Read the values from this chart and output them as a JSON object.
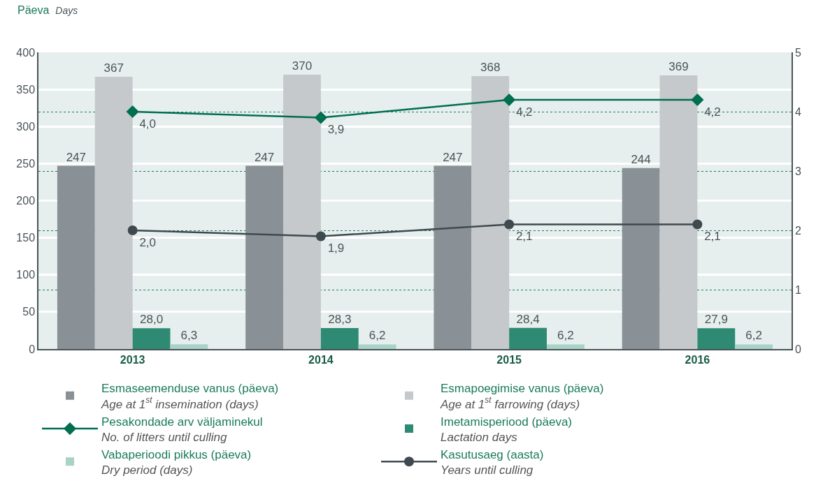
{
  "chart_data": {
    "type": "bar",
    "ylabel": "Päeva\nDays",
    "categories": [
      "2013",
      "2014",
      "2015",
      "2016"
    ],
    "series": [
      {
        "name": "Esmaseemenduse vanus (päeva)\nAge at 1$^{st}$ insemination (days)",
        "color": "#8a9196",
        "values": [
          247,
          247,
          247,
          244
        ]
      },
      {
        "name": "Esmapoegimise vanus (päeva)\nAge at 1$^{st}$ farrowing (days)",
        "color": "#c5c9cb",
        "values": [
          367,
          370,
          368,
          369
        ]
      },
      {
        "name": "Pesakondade arv väljaminekul\nNo. of litters until culling",
        "type": "line",
        "axis": "y2",
        "marker": "diamond",
        "color": "#006e50",
        "values": [
          4.0,
          3.9,
          4.2,
          4.2
        ],
        "value_labels": [
          "4,0",
          "3,9",
          "4,2",
          "4,2"
        ]
      },
      {
        "name": "Imetamisperiood (päeva)\nLactation days",
        "color": "#2e8a72",
        "values": [
          28.0,
          28.3,
          28.4,
          27.9
        ],
        "value_labels": [
          "28,0",
          "28,3",
          "28,4",
          "27,9"
        ]
      },
      {
        "name": "Vabaperioodi pikkus (päeva)\nDry period (days)",
        "color": "#a9d3c6",
        "values": [
          6.3,
          6.2,
          6.2,
          6.2
        ],
        "value_labels": [
          "6,3",
          "6,2",
          "6,2",
          "6,2"
        ]
      },
      {
        "name": "Kasutusaeg (aasta)\nYears until culling",
        "type": "line",
        "axis": "y2",
        "marker": "circle",
        "color": "#3f4a50",
        "values": [
          2.0,
          1.9,
          2.1,
          2.1
        ],
        "value_labels": [
          "2,0",
          "1,9",
          "2,1",
          "2,1"
        ]
      }
    ],
    "ylim": [
      0,
      400
    ],
    "yticks": [
      0,
      50,
      100,
      150,
      200,
      250,
      300,
      350,
      400
    ],
    "y2lim": [
      0,
      5
    ],
    "y2ticks": [
      0,
      1,
      2,
      3,
      4,
      5
    ],
    "data_labels": true,
    "grid": true,
    "legend": "bottom"
  }
}
